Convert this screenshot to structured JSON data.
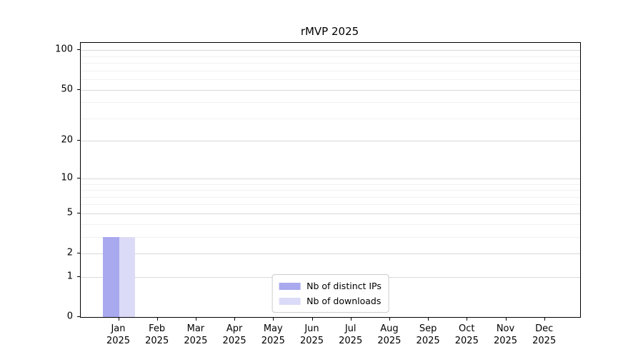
{
  "chart_data": {
    "type": "bar",
    "title": "rMVP 2025",
    "categories": [
      "Jan 2025",
      "Feb 2025",
      "Mar 2025",
      "Apr 2025",
      "May 2025",
      "Jun 2025",
      "Jul 2025",
      "Aug 2025",
      "Sep 2025",
      "Oct 2025",
      "Nov 2025",
      "Dec 2025"
    ],
    "series": [
      {
        "name": "Nb of distinct IPs",
        "color": "#a9a9f0",
        "values": [
          3,
          0,
          0,
          0,
          0,
          0,
          0,
          0,
          0,
          0,
          0,
          0
        ]
      },
      {
        "name": "Nb of downloads",
        "color": "#dbdbf8",
        "values": [
          3,
          0,
          0,
          0,
          0,
          0,
          0,
          0,
          0,
          0,
          0,
          0
        ]
      }
    ],
    "yscale": "log1p",
    "ylim": [
      0,
      113.5
    ],
    "yticks": [
      0,
      1,
      2,
      5,
      10,
      20,
      50,
      100
    ],
    "yticklabels": [
      "0",
      "1",
      "2",
      "5",
      "10",
      "20",
      "50",
      "100"
    ],
    "yticks_minor": [
      3,
      4,
      6,
      7,
      8,
      9,
      30,
      40,
      60,
      70,
      80,
      90
    ],
    "grid": "both",
    "legend_position": "lower center",
    "xlabel": "",
    "ylabel": ""
  },
  "colors": {
    "grid_major": "#d9d9d9",
    "grid_minor": "#f1f1f1",
    "spine": "#000000",
    "legend_border": "#cccccc",
    "background": "#ffffff"
  }
}
